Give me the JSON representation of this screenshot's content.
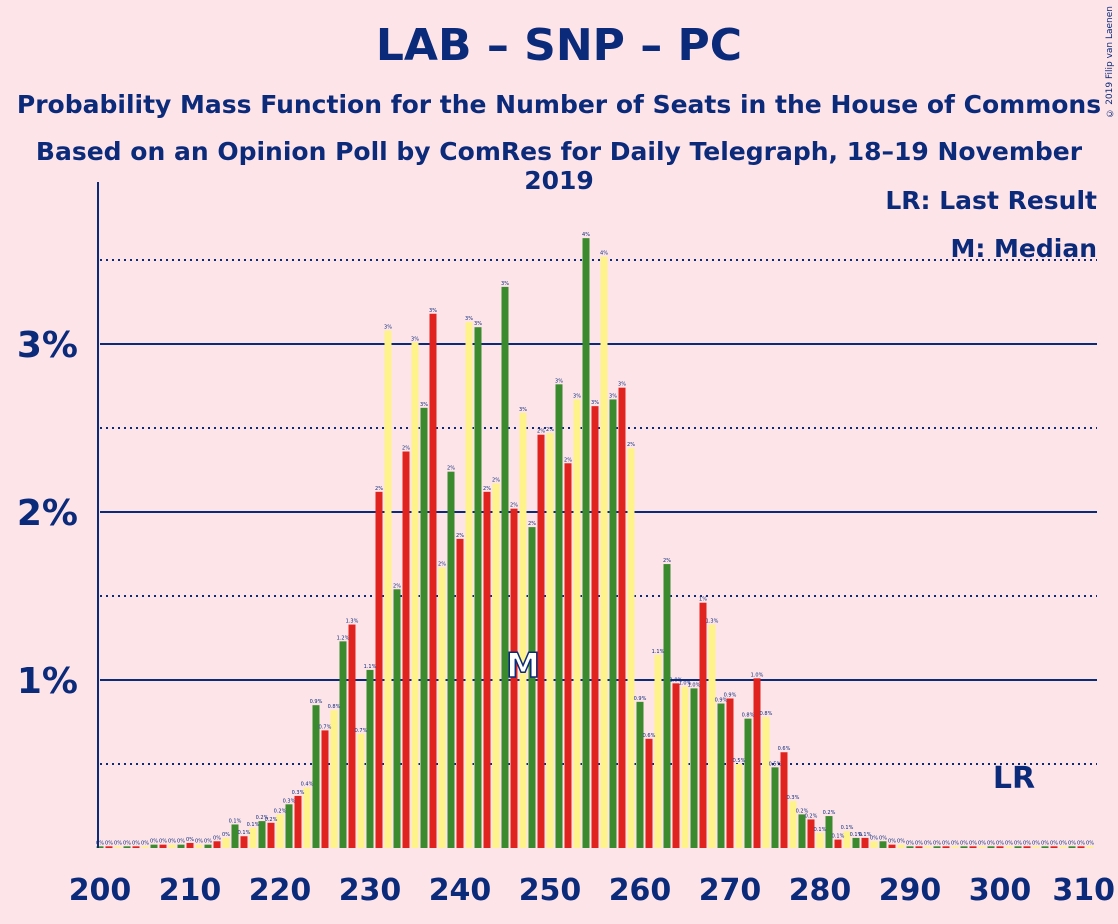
{
  "title": "LAB – SNP – PC",
  "subtitle1": "Probability Mass Function for the Number of Seats in the House of Commons",
  "subtitle2": "Based on an Opinion Poll by ComRes for Daily Telegraph, 18–19 November 2019",
  "copyright": "© 2019 Filip van Laenen",
  "legend": {
    "lr": "LR: Last Result",
    "m": "M: Median"
  },
  "markers": {
    "lr_label": "LR",
    "lr_seat": 303,
    "median_label": "M",
    "median_seat": 247
  },
  "colors": {
    "background": "#fde4e8",
    "text": "#0b2a7a",
    "series": [
      "#3b8a2e",
      "#e0231e",
      "#fdf38a"
    ]
  },
  "chart_data": {
    "type": "bar",
    "xlabel": "",
    "ylabel": "",
    "xlim": [
      200,
      310
    ],
    "ylim": [
      0,
      3.9
    ],
    "unit": "%",
    "yticks": [
      {
        "value": 1,
        "label": "1%"
      },
      {
        "value": 2,
        "label": "2%"
      },
      {
        "value": 3,
        "label": "3%"
      }
    ],
    "xticks": [
      200,
      210,
      220,
      230,
      240,
      250,
      260,
      270,
      280,
      290,
      300,
      310
    ],
    "minor_gridlines": [
      0.5,
      1.5,
      2.5,
      3.5
    ],
    "seats_start": 200,
    "values": [
      0.01,
      0.01,
      0.01,
      0.01,
      0.01,
      0.01,
      0.02,
      0.02,
      0.02,
      0.02,
      0.03,
      0.02,
      0.02,
      0.04,
      0.06,
      0.14,
      0.07,
      0.12,
      0.16,
      0.15,
      0.2,
      0.26,
      0.31,
      0.36,
      0.85,
      0.7,
      0.82,
      1.23,
      1.33,
      0.68,
      1.06,
      2.12,
      3.08,
      1.54,
      2.36,
      3.01,
      2.62,
      3.18,
      1.67,
      2.24,
      1.84,
      3.13,
      3.1,
      2.12,
      2.17,
      3.34,
      2.02,
      2.59,
      1.91,
      2.46,
      2.47,
      2.76,
      2.29,
      2.67,
      3.63,
      2.63,
      3.52,
      2.67,
      2.74,
      2.38,
      0.87,
      0.65,
      1.15,
      1.69,
      0.98,
      0.96,
      0.95,
      1.46,
      1.33,
      0.86,
      0.89,
      0.5,
      0.77,
      1.01,
      0.78,
      0.48,
      0.57,
      0.28,
      0.2,
      0.17,
      0.09,
      0.19,
      0.05,
      0.1,
      0.06,
      0.06,
      0.04,
      0.04,
      0.02,
      0.02,
      0.01,
      0.01,
      0.01,
      0.01,
      0.01,
      0.01,
      0.01,
      0.01,
      0.01,
      0.01,
      0.01,
      0.01,
      0.01,
      0.01,
      0.01,
      0.01,
      0.01,
      0.01,
      0.01,
      0.01,
      0.01
    ],
    "labels": [
      "0%",
      "0%",
      "0%",
      "0%",
      "0%",
      "0%",
      "0%",
      "0%",
      "0%",
      "0%",
      "0%",
      "0%",
      "0%",
      "0%",
      "0%",
      "0.1%",
      "0.1%",
      "0.1%",
      "0.2%",
      "0.2%",
      "0.2%",
      "0.3%",
      "0.3%",
      "0.4%",
      "0.9%",
      "0.7%",
      "0.8%",
      "1.2%",
      "1.3%",
      "0.7%",
      "1.1%",
      "2%",
      "3%",
      "2%",
      "2%",
      "3%",
      "3%",
      "3%",
      "2%",
      "2%",
      "2%",
      "3%",
      "3%",
      "2%",
      "2%",
      "3%",
      "2%",
      "3%",
      "2%",
      "2%",
      "2%",
      "3%",
      "2%",
      "3%",
      "4%",
      "3%",
      "4%",
      "3%",
      "3%",
      "2%",
      "0.9%",
      "0.6%",
      "1.1%",
      "2%",
      "1.0%",
      "1.0%",
      "1.0%",
      "1%",
      "1.3%",
      "0.9%",
      "0.9%",
      "0.5%",
      "0.8%",
      "1.0%",
      "0.8%",
      "0.5%",
      "0.6%",
      "0.3%",
      "0.2%",
      "0.2%",
      "0.1%",
      "0.2%",
      "0.1%",
      "0.1%",
      "0.1%",
      "0.1%",
      "0%",
      "0%",
      "0%",
      "0%",
      "0%",
      "0%",
      "0%",
      "0%",
      "0%",
      "0%",
      "0%",
      "0%",
      "0%",
      "0%",
      "0%",
      "0%",
      "0%",
      "0%",
      "0%",
      "0%",
      "0%",
      "0%",
      "0%",
      "0%",
      "0%"
    ]
  }
}
